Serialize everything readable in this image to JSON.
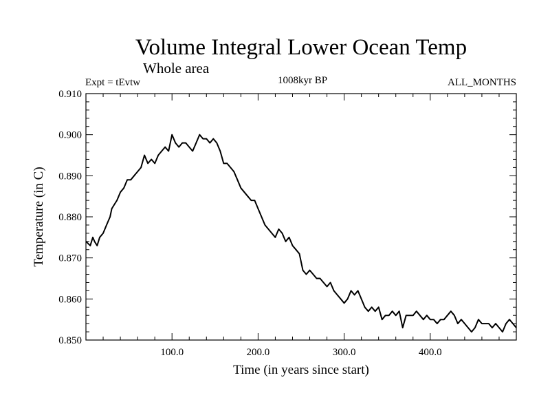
{
  "chart_data": {
    "type": "line",
    "title": "Volume Integral Lower Ocean Temp",
    "subtitle": "Whole area",
    "left_label": "Expt = tEvtw",
    "center_label": "1008kyr BP",
    "right_label": "ALL_MONTHS",
    "xlabel": "Time (in years since start)",
    "ylabel": "Temperature (in C)",
    "xlim": [
      0,
      500
    ],
    "ylim": [
      0.85,
      0.91
    ],
    "xticks": [
      100,
      200,
      300,
      400
    ],
    "xtick_labels": [
      "100.0",
      "200.0",
      "300.0",
      "400.0"
    ],
    "yticks": [
      0.85,
      0.86,
      0.87,
      0.88,
      0.89,
      0.9,
      0.91
    ],
    "ytick_labels": [
      "0.850",
      "0.860",
      "0.870",
      "0.880",
      "0.890",
      "0.900",
      "0.910"
    ],
    "grid": false,
    "line_color": "#000000",
    "series": [
      {
        "name": "Temperature",
        "x": [
          0,
          5,
          8,
          10,
          13,
          16,
          20,
          24,
          28,
          30,
          33,
          36,
          40,
          44,
          48,
          52,
          56,
          60,
          64,
          68,
          72,
          76,
          80,
          84,
          88,
          92,
          96,
          100,
          104,
          108,
          112,
          116,
          120,
          124,
          128,
          132,
          136,
          140,
          144,
          148,
          152,
          156,
          160,
          164,
          168,
          172,
          176,
          180,
          184,
          188,
          192,
          196,
          200,
          204,
          208,
          212,
          216,
          220,
          224,
          228,
          232,
          236,
          240,
          244,
          248,
          252,
          256,
          260,
          264,
          268,
          272,
          276,
          280,
          284,
          288,
          292,
          296,
          300,
          304,
          308,
          312,
          316,
          320,
          324,
          328,
          332,
          336,
          340,
          344,
          348,
          352,
          356,
          360,
          364,
          368,
          372,
          376,
          380,
          384,
          388,
          392,
          396,
          400,
          404,
          408,
          412,
          416,
          420,
          424,
          428,
          432,
          436,
          440,
          444,
          448,
          452,
          456,
          460,
          464,
          468,
          472,
          476,
          480,
          484,
          488,
          492,
          496,
          500
        ],
        "values": [
          0.874,
          0.873,
          0.875,
          0.874,
          0.873,
          0.875,
          0.876,
          0.878,
          0.88,
          0.882,
          0.883,
          0.884,
          0.886,
          0.887,
          0.889,
          0.889,
          0.89,
          0.891,
          0.892,
          0.895,
          0.893,
          0.894,
          0.893,
          0.895,
          0.896,
          0.897,
          0.896,
          0.9,
          0.898,
          0.897,
          0.898,
          0.898,
          0.897,
          0.896,
          0.898,
          0.9,
          0.899,
          0.899,
          0.898,
          0.899,
          0.898,
          0.896,
          0.893,
          0.893,
          0.892,
          0.891,
          0.889,
          0.887,
          0.886,
          0.885,
          0.884,
          0.884,
          0.882,
          0.88,
          0.878,
          0.877,
          0.876,
          0.875,
          0.877,
          0.876,
          0.874,
          0.875,
          0.873,
          0.872,
          0.871,
          0.867,
          0.866,
          0.867,
          0.866,
          0.865,
          0.865,
          0.864,
          0.863,
          0.864,
          0.862,
          0.861,
          0.86,
          0.859,
          0.86,
          0.862,
          0.861,
          0.862,
          0.86,
          0.858,
          0.857,
          0.858,
          0.857,
          0.858,
          0.855,
          0.856,
          0.856,
          0.857,
          0.856,
          0.857,
          0.853,
          0.856,
          0.856,
          0.856,
          0.857,
          0.856,
          0.855,
          0.856,
          0.855,
          0.855,
          0.854,
          0.855,
          0.855,
          0.856,
          0.857,
          0.856,
          0.854,
          0.855,
          0.854,
          0.853,
          0.852,
          0.853,
          0.855,
          0.854,
          0.854,
          0.854,
          0.853,
          0.854,
          0.853,
          0.852,
          0.854,
          0.855,
          0.854,
          0.853
        ]
      }
    ]
  }
}
